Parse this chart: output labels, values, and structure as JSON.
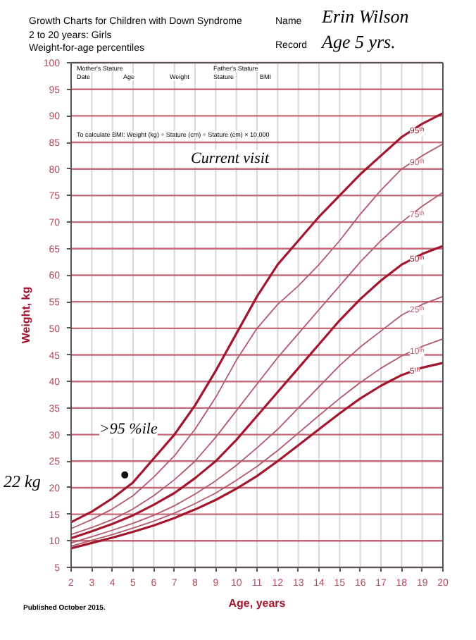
{
  "chart_data": {
    "type": "line",
    "title": "Growth Charts for Children with Down Syndrome",
    "subtitle": "2 to 20 years: Girls\nWeight-for-age percentiles",
    "xlabel": "Age, years",
    "ylabel": "Weight, kg",
    "x": [
      2,
      3,
      4,
      5,
      6,
      7,
      8,
      9,
      10,
      11,
      12,
      13,
      14,
      15,
      16,
      17,
      18,
      19,
      20
    ],
    "series": [
      {
        "name": "95ᵗʰ",
        "color": "#a3162e",
        "values": [
          13.5,
          15.5,
          18,
          21,
          25.5,
          30,
          35.5,
          42,
          49,
          56,
          62,
          66.5,
          71,
          75,
          79,
          82.5,
          86,
          88.5,
          90.5
        ]
      },
      {
        "name": "90ᵗʰ",
        "color": "#b4586a",
        "values": [
          12.3,
          14,
          16,
          18.5,
          22,
          26,
          31,
          37,
          44,
          50,
          54.5,
          58,
          62,
          66.5,
          71.5,
          76,
          80,
          82.5,
          84.7
        ]
      },
      {
        "name": "75ᵗʰ",
        "color": "#b4586a",
        "values": [
          11.2,
          12.5,
          14,
          16,
          18.5,
          21.5,
          25,
          29.5,
          34.5,
          39.5,
          44.5,
          49,
          53.5,
          58,
          62.5,
          66.5,
          70,
          73,
          75.6
        ]
      },
      {
        "name": "50ᵗʰ",
        "color": "#a3162e",
        "values": [
          10.5,
          11.8,
          13.2,
          14.8,
          16.8,
          19,
          21.8,
          25,
          29,
          33.5,
          38,
          42.5,
          47,
          51.5,
          55.5,
          59,
          62,
          64,
          65.5
        ]
      },
      {
        "name": "25ᵗʰ",
        "color": "#b4586a",
        "values": [
          9.6,
          10.8,
          12,
          13.3,
          14.8,
          16.6,
          18.8,
          21.3,
          24.2,
          27.5,
          31,
          35,
          39,
          43,
          46.5,
          49.5,
          52.5,
          54.5,
          56
        ]
      },
      {
        "name": "10ᵗʰ",
        "color": "#b4586a",
        "values": [
          9,
          10.1,
          11.2,
          12.4,
          13.7,
          15.2,
          17,
          19,
          21.4,
          24,
          27,
          30.3,
          33.6,
          36.8,
          39.8,
          42.5,
          44.8,
          46.6,
          48
        ]
      },
      {
        "name": "5ᵗʰ",
        "color": "#a3162e",
        "values": [
          8.6,
          9.6,
          10.6,
          11.7,
          12.9,
          14.3,
          15.9,
          17.7,
          19.8,
          22.2,
          25,
          28,
          31,
          34,
          36.8,
          39.2,
          41.2,
          42.6,
          43.5
        ]
      },
      {
        "type": "scatter",
        "x": [
          4.6
        ],
        "values": [
          22.4
        ],
        "color": "#111111",
        "marker": "circle"
      }
    ],
    "xlim": [
      2,
      20
    ],
    "ylim": [
      5,
      100
    ],
    "xticks": [
      2,
      3,
      4,
      5,
      6,
      7,
      8,
      9,
      10,
      11,
      12,
      13,
      14,
      15,
      16,
      17,
      18,
      19,
      20
    ],
    "yticks": [
      5,
      10,
      15,
      20,
      25,
      30,
      35,
      40,
      45,
      50,
      55,
      60,
      65,
      70,
      75,
      80,
      85,
      90,
      95,
      100
    ],
    "grid": true,
    "annotations": [
      "Mother's Stature",
      "Father's Stature",
      "Date",
      "Age",
      "Weight",
      "Stature",
      "BMI",
      "To calculate BMI: Weight (kg) ÷ Stature (cm) ÷ Stature (cm) × 10,000",
      "Name",
      "Erin Wilson",
      "Record",
      "Age 5 yrs.",
      "Current visit",
      ">95 %ile",
      "22 kg",
      "Published October 2015."
    ]
  }
}
